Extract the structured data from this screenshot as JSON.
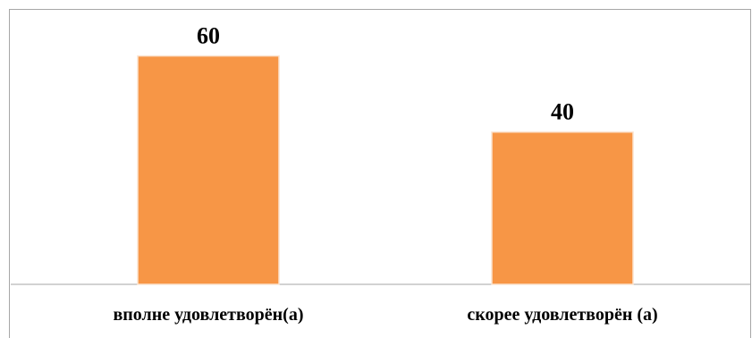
{
  "chart_data": {
    "type": "bar",
    "categories": [
      "вполне удовлетворён(а)",
      "скорее удовлетворён (а)"
    ],
    "values": [
      60,
      40
    ],
    "title": "",
    "xlabel": "",
    "ylabel": "",
    "ylim": [
      0,
      70
    ],
    "grid": false,
    "legend": "none",
    "colors": {
      "bar": "#f79646",
      "bar_edge": "#fbe3cf",
      "axis": "#a6a6a6"
    }
  }
}
